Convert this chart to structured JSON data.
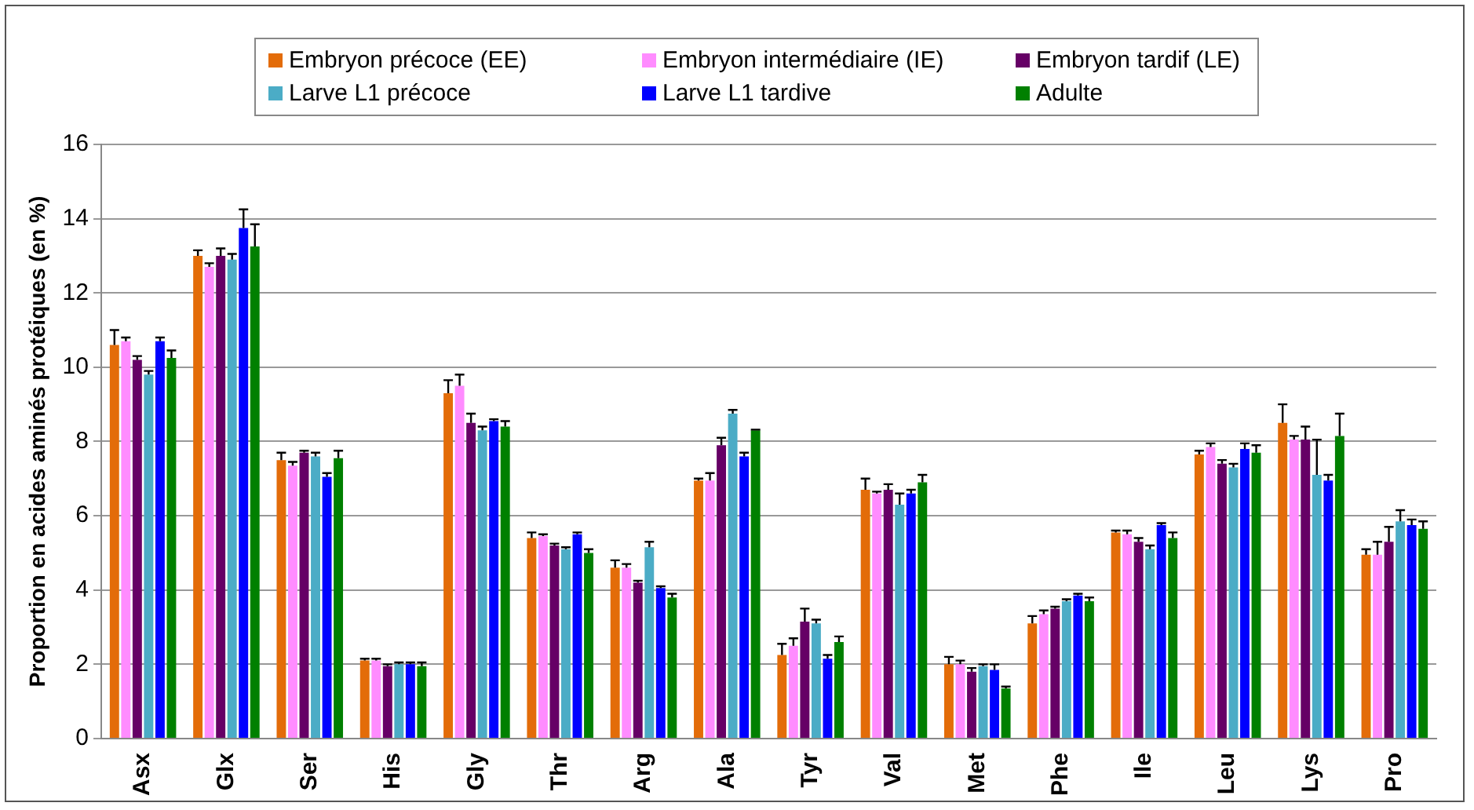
{
  "chart_data": {
    "type": "bar",
    "ylabel": "Proportion en acides aminés protéiques (en %)",
    "categories": [
      "Asx",
      "Glx",
      "Ser",
      "His",
      "Gly",
      "Thr",
      "Arg",
      "Ala",
      "Tyr",
      "Val",
      "Met",
      "Phe",
      "Ile",
      "Leu",
      "Lys",
      "Pro"
    ],
    "series": [
      {
        "name": "Embryon précoce (EE)",
        "color": "#e36c09",
        "values": [
          10.6,
          13.0,
          7.5,
          2.1,
          9.3,
          5.4,
          4.6,
          6.95,
          2.25,
          6.7,
          2.0,
          3.1,
          5.55,
          7.65,
          8.5,
          4.95
        ],
        "errors": [
          0.4,
          0.15,
          0.2,
          0.05,
          0.35,
          0.15,
          0.2,
          0.05,
          0.3,
          0.3,
          0.2,
          0.2,
          0.05,
          0.1,
          0.5,
          0.15
        ]
      },
      {
        "name": "Embryon intermédiaire (IE)",
        "color": "#ff8cff",
        "values": [
          10.7,
          12.7,
          7.35,
          2.1,
          9.5,
          5.45,
          4.6,
          6.95,
          2.5,
          6.6,
          2.0,
          3.35,
          5.5,
          7.85,
          8.05,
          4.95
        ],
        "errors": [
          0.1,
          0.1,
          0.1,
          0.05,
          0.3,
          0.05,
          0.1,
          0.2,
          0.2,
          0.05,
          0.1,
          0.1,
          0.1,
          0.1,
          0.1,
          0.35
        ]
      },
      {
        "name": "Embryon tardif (LE)",
        "color": "#660066",
        "values": [
          10.2,
          13.0,
          7.7,
          1.95,
          8.5,
          5.2,
          4.2,
          7.9,
          3.15,
          6.7,
          1.8,
          3.5,
          5.3,
          7.4,
          8.05,
          5.3
        ],
        "errors": [
          0.1,
          0.2,
          0.05,
          0.05,
          0.25,
          0.05,
          0.05,
          0.2,
          0.35,
          0.15,
          0.1,
          0.05,
          0.1,
          0.1,
          0.35,
          0.4
        ]
      },
      {
        "name": "Larve L1 précoce",
        "color": "#4bacc6",
        "values": [
          9.8,
          12.9,
          7.6,
          2.0,
          8.3,
          5.1,
          5.15,
          8.75,
          3.1,
          6.3,
          1.95,
          3.7,
          5.1,
          7.3,
          7.1,
          5.85
        ],
        "errors": [
          0.1,
          0.15,
          0.1,
          0.05,
          0.1,
          0.05,
          0.15,
          0.1,
          0.1,
          0.3,
          0.05,
          0.05,
          0.1,
          0.1,
          0.95,
          0.3
        ]
      },
      {
        "name": "Larve L1 tardive",
        "color": "#0000ff",
        "values": [
          10.7,
          13.75,
          7.05,
          2.0,
          8.55,
          5.5,
          4.05,
          7.6,
          2.15,
          6.6,
          1.85,
          3.85,
          5.75,
          7.8,
          6.95,
          5.75
        ],
        "errors": [
          0.1,
          0.5,
          0.1,
          0.05,
          0.05,
          0.05,
          0.05,
          0.1,
          0.1,
          0.1,
          0.15,
          0.05,
          0.05,
          0.15,
          0.15,
          0.15
        ]
      },
      {
        "name": "Adulte",
        "color": "#008000",
        "values": [
          10.25,
          13.25,
          7.55,
          1.95,
          8.4,
          5.0,
          3.8,
          8.3,
          2.6,
          6.9,
          1.35,
          3.7,
          5.4,
          7.7,
          8.15,
          5.65
        ],
        "errors": [
          0.2,
          0.6,
          0.2,
          0.1,
          0.15,
          0.1,
          0.1,
          0.02,
          0.15,
          0.2,
          0.05,
          0.1,
          0.15,
          0.2,
          0.6,
          0.2
        ]
      }
    ],
    "ylim": [
      0,
      16
    ],
    "yticks": [
      0,
      2,
      4,
      6,
      8,
      10,
      12,
      14,
      16
    ],
    "grid": "y",
    "legend": "top"
  }
}
